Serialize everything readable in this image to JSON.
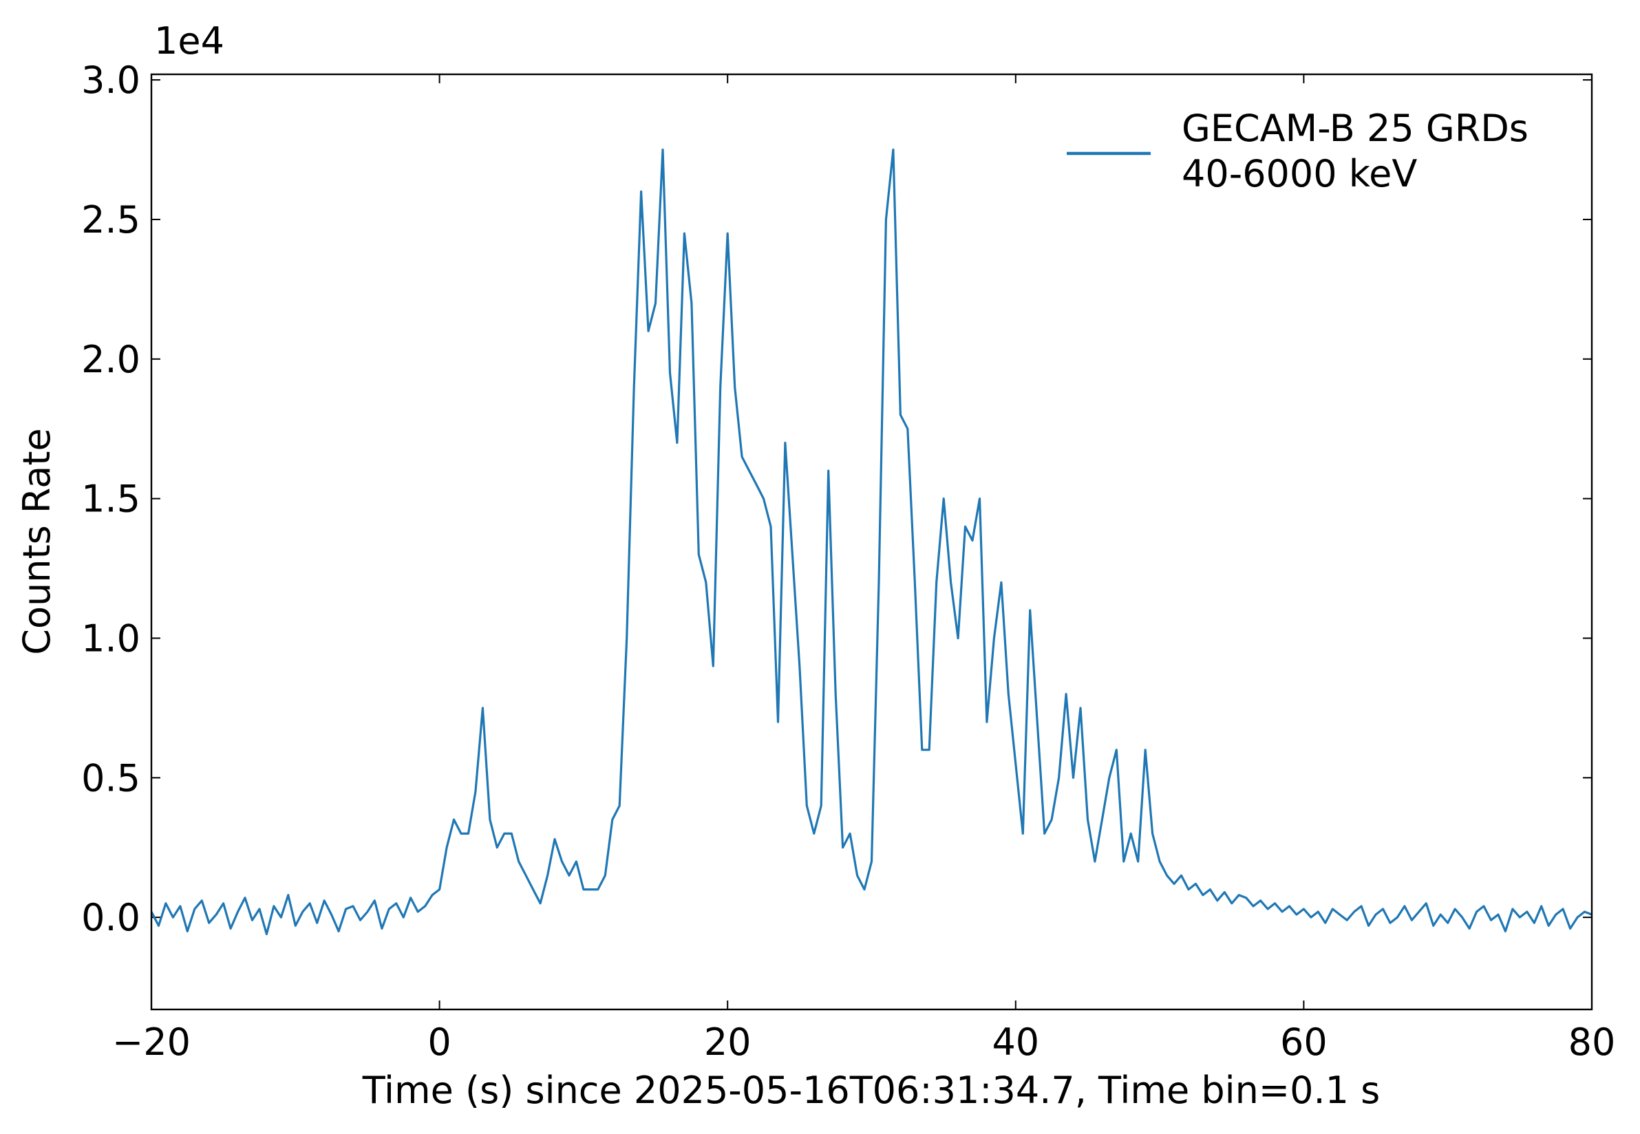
{
  "chart_data": {
    "type": "line",
    "offset_label": "1e4",
    "xlabel": "Time (s) since 2025-05-16T06:31:34.7, Time bin=0.1 s",
    "ylabel": "Counts Rate",
    "xlim": [
      -20,
      80
    ],
    "ylim": [
      -0.33,
      3.02
    ],
    "xticks": [
      {
        "value": -20,
        "label": "−20"
      },
      0,
      20,
      40,
      60,
      80
    ],
    "yticks": [
      {
        "value": 0,
        "label": "0.0"
      },
      0.5,
      {
        "value": 1,
        "label": "1.0"
      },
      1.5,
      {
        "value": 2,
        "label": "2.0"
      },
      2.5,
      {
        "value": 3,
        "label": "3.0"
      }
    ],
    "legend": "upper right",
    "x": [
      -20,
      -19.5,
      -19,
      -18.5,
      -18,
      -17.5,
      -17,
      -16.5,
      -16,
      -15.5,
      -15,
      -14.5,
      -14,
      -13.5,
      -13,
      -12.5,
      -12,
      -11.5,
      -11,
      -10.5,
      -10,
      -9.5,
      -9,
      -8.5,
      -8,
      -7.5,
      -7,
      -6.5,
      -6,
      -5.5,
      -5,
      -4.5,
      -4,
      -3.5,
      -3,
      -2.5,
      -2,
      -1.5,
      -1,
      -0.5,
      0,
      0.5,
      1,
      1.5,
      2,
      2.5,
      3,
      3.5,
      4,
      4.5,
      5,
      5.5,
      6,
      6.5,
      7,
      7.5,
      8,
      8.5,
      9,
      9.5,
      10,
      10.5,
      11,
      11.5,
      12,
      12.5,
      13,
      13.5,
      14,
      14.5,
      15,
      15.5,
      16,
      16.5,
      17,
      17.5,
      18,
      18.5,
      19,
      19.5,
      20,
      20.5,
      21,
      21.5,
      22,
      22.5,
      23,
      23.5,
      24,
      24.5,
      25,
      25.5,
      26,
      26.5,
      27,
      27.5,
      28,
      28.5,
      29,
      29.5,
      30,
      30.5,
      31,
      31.5,
      32,
      32.5,
      33,
      33.5,
      34,
      34.5,
      35,
      35.5,
      36,
      36.5,
      37,
      37.5,
      38,
      38.5,
      39,
      39.5,
      40,
      40.5,
      41,
      41.5,
      42,
      42.5,
      43,
      43.5,
      44,
      44.5,
      45,
      45.5,
      46,
      46.5,
      47,
      47.5,
      48,
      48.5,
      49,
      49.5,
      50,
      50.5,
      51,
      51.5,
      52,
      52.5,
      53,
      53.5,
      54,
      54.5,
      55,
      55.5,
      56,
      56.5,
      57,
      57.5,
      58,
      58.5,
      59,
      59.5,
      60,
      60.5,
      61,
      61.5,
      62,
      62.5,
      63,
      63.5,
      64,
      64.5,
      65,
      65.5,
      66,
      66.5,
      67,
      67.5,
      68,
      68.5,
      69,
      69.5,
      70,
      70.5,
      71,
      71.5,
      72,
      72.5,
      73,
      73.5,
      74,
      74.5,
      75,
      75.5,
      76,
      76.5,
      77,
      77.5,
      78,
      78.5,
      79,
      79.5,
      80
    ],
    "series": [
      {
        "name": "GECAM-B 25 GRDs\n40-6000 keV",
        "color": "#1f77b4",
        "values": [
          0.02,
          -0.03,
          0.05,
          0.0,
          0.04,
          -0.05,
          0.03,
          0.06,
          -0.02,
          0.01,
          0.05,
          -0.04,
          0.02,
          0.07,
          -0.01,
          0.03,
          -0.06,
          0.04,
          0.0,
          0.08,
          -0.03,
          0.02,
          0.05,
          -0.02,
          0.06,
          0.01,
          -0.05,
          0.03,
          0.04,
          -0.01,
          0.02,
          0.06,
          -0.04,
          0.03,
          0.05,
          0.0,
          0.07,
          0.02,
          0.04,
          0.08,
          0.1,
          0.25,
          0.35,
          0.3,
          0.3,
          0.45,
          0.75,
          0.35,
          0.25,
          0.3,
          0.3,
          0.2,
          0.15,
          0.1,
          0.05,
          0.15,
          0.28,
          0.2,
          0.15,
          0.2,
          0.1,
          0.1,
          0.1,
          0.15,
          0.35,
          0.4,
          1.0,
          1.9,
          2.6,
          2.1,
          2.2,
          2.75,
          1.95,
          1.7,
          2.45,
          2.2,
          1.3,
          1.2,
          0.9,
          1.9,
          2.45,
          1.9,
          1.65,
          1.6,
          1.55,
          1.5,
          1.4,
          0.7,
          1.7,
          1.3,
          0.9,
          0.4,
          0.3,
          0.4,
          1.6,
          0.8,
          0.25,
          0.3,
          0.15,
          0.1,
          0.2,
          1.2,
          2.5,
          2.75,
          1.8,
          1.75,
          1.2,
          0.6,
          0.6,
          1.2,
          1.5,
          1.2,
          1.0,
          1.4,
          1.35,
          1.5,
          0.7,
          1.0,
          1.2,
          0.8,
          0.55,
          0.3,
          1.1,
          0.7,
          0.3,
          0.35,
          0.5,
          0.8,
          0.5,
          0.75,
          0.35,
          0.2,
          0.35,
          0.5,
          0.6,
          0.2,
          0.3,
          0.2,
          0.6,
          0.3,
          0.2,
          0.15,
          0.12,
          0.15,
          0.1,
          0.12,
          0.08,
          0.1,
          0.06,
          0.09,
          0.05,
          0.08,
          0.07,
          0.04,
          0.06,
          0.03,
          0.05,
          0.02,
          0.04,
          0.01,
          0.03,
          0.0,
          0.02,
          -0.02,
          0.03,
          0.01,
          -0.01,
          0.02,
          0.04,
          -0.03,
          0.01,
          0.03,
          -0.02,
          0.0,
          0.04,
          -0.01,
          0.02,
          0.05,
          -0.03,
          0.01,
          -0.02,
          0.03,
          0.0,
          -0.04,
          0.02,
          0.04,
          -0.01,
          0.01,
          -0.05,
          0.03,
          0.0,
          0.02,
          -0.02,
          0.04,
          -0.03,
          0.01,
          0.03,
          -0.04,
          0.0,
          0.02,
          0.01
        ]
      }
    ]
  }
}
